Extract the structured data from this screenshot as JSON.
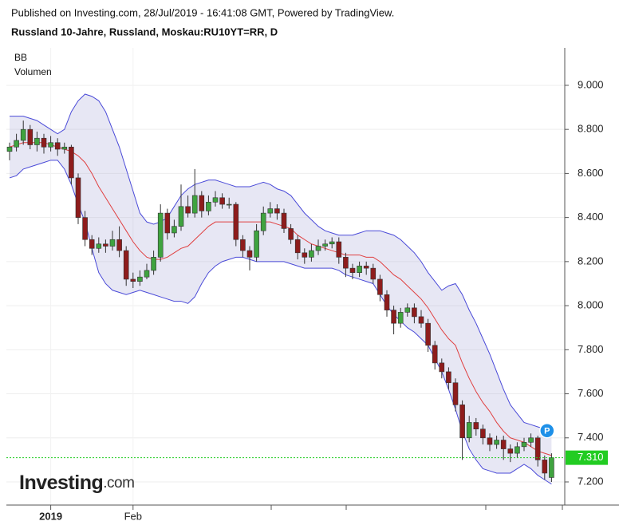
{
  "chart_data": {
    "type": "candlestick",
    "source": "Published on Investing.com, 28/Jul/2019 - 16:41:08 GMT, Powered by TradingView.",
    "title": "Russland 10-Jahre, Russland, Moskau:RU10YT=RR, D",
    "indicators": [
      "BB",
      "Volumen"
    ],
    "marker": "P",
    "up_color": "#3fa33f",
    "down_color": "#8e1c1c",
    "band_color": "#4a4ad8",
    "middle_color": "#e04040",
    "grid": true,
    "ylim": [
      7.095,
      9.17
    ],
    "yticks": [
      {
        "value": 7.2,
        "label": "7.200"
      },
      {
        "value": 7.4,
        "label": "7.400"
      },
      {
        "value": 7.6,
        "label": "7.600"
      },
      {
        "value": 7.8,
        "label": "7.800"
      },
      {
        "value": 8,
        "label": "8.000"
      },
      {
        "value": 8.2,
        "label": "8.200"
      },
      {
        "value": 8.4,
        "label": "8.400"
      },
      {
        "value": 8.6,
        "label": "8.600"
      },
      {
        "value": 8.8,
        "label": "8.800"
      },
      {
        "value": 9,
        "label": "9.000"
      }
    ],
    "last_price": {
      "value": 7.31,
      "label": "7.310"
    },
    "categories": [
      null,
      null,
      null,
      null,
      null,
      null,
      "2019",
      null,
      null,
      null,
      null,
      null,
      null,
      null,
      null,
      null,
      null,
      null,
      "Feb",
      null,
      null,
      null,
      null,
      null,
      null,
      null,
      null,
      null,
      null,
      null,
      null,
      null,
      null,
      null,
      null,
      null,
      null,
      null,
      null,
      null,
      null,
      null,
      null,
      null,
      null,
      null,
      null,
      null,
      null,
      null,
      null,
      null,
      null,
      null,
      null,
      null,
      null,
      null,
      null,
      null,
      null,
      null,
      null,
      null,
      null,
      null,
      null,
      null,
      null,
      null,
      null,
      null,
      null,
      null,
      null,
      null,
      null,
      null,
      null,
      null
    ],
    "candles": [
      [
        8.7,
        8.74,
        8.66,
        8.72
      ],
      [
        8.72,
        8.78,
        8.7,
        8.75
      ],
      [
        8.75,
        8.84,
        8.73,
        8.8
      ],
      [
        8.8,
        8.82,
        8.71,
        8.73
      ],
      [
        8.73,
        8.79,
        8.7,
        8.76
      ],
      [
        8.76,
        8.78,
        8.69,
        8.72
      ],
      [
        8.72,
        8.77,
        8.7,
        8.74
      ],
      [
        8.74,
        8.76,
        8.68,
        8.71
      ],
      [
        8.71,
        8.74,
        8.69,
        8.72
      ],
      [
        8.72,
        8.73,
        8.55,
        8.58
      ],
      [
        8.58,
        8.6,
        8.37,
        8.4
      ],
      [
        8.4,
        8.43,
        8.27,
        8.3
      ],
      [
        8.3,
        8.32,
        8.23,
        8.26
      ],
      [
        8.26,
        8.31,
        8.24,
        8.28
      ],
      [
        8.28,
        8.3,
        8.24,
        8.27
      ],
      [
        8.27,
        8.34,
        8.25,
        8.3
      ],
      [
        8.3,
        8.36,
        8.22,
        8.25
      ],
      [
        8.25,
        8.27,
        8.09,
        8.12
      ],
      [
        8.12,
        8.15,
        8.08,
        8.11
      ],
      [
        8.11,
        8.16,
        8.09,
        8.13
      ],
      [
        8.13,
        8.19,
        8.12,
        8.16
      ],
      [
        8.16,
        8.25,
        8.14,
        8.22
      ],
      [
        8.22,
        8.46,
        8.2,
        8.42
      ],
      [
        8.42,
        8.44,
        8.3,
        8.33
      ],
      [
        8.33,
        8.39,
        8.31,
        8.36
      ],
      [
        8.36,
        8.55,
        8.34,
        8.45
      ],
      [
        8.45,
        8.5,
        8.4,
        8.42
      ],
      [
        8.42,
        8.62,
        8.4,
        8.5
      ],
      [
        8.5,
        8.52,
        8.4,
        8.43
      ],
      [
        8.43,
        8.5,
        8.41,
        8.47
      ],
      [
        8.47,
        8.52,
        8.45,
        8.49
      ],
      [
        8.49,
        8.51,
        8.44,
        8.46
      ],
      [
        8.46,
        8.49,
        8.44,
        8.46
      ],
      [
        8.46,
        8.47,
        8.27,
        8.3
      ],
      [
        8.3,
        8.32,
        8.22,
        8.25
      ],
      [
        8.25,
        8.27,
        8.16,
        8.22
      ],
      [
        8.22,
        8.37,
        8.2,
        8.34
      ],
      [
        8.34,
        8.45,
        8.32,
        8.42
      ],
      [
        8.42,
        8.47,
        8.4,
        8.44
      ],
      [
        8.44,
        8.46,
        8.39,
        8.42
      ],
      [
        8.42,
        8.44,
        8.33,
        8.35
      ],
      [
        8.35,
        8.37,
        8.28,
        8.3
      ],
      [
        8.3,
        8.32,
        8.21,
        8.24
      ],
      [
        8.24,
        8.26,
        8.19,
        8.22
      ],
      [
        8.22,
        8.28,
        8.2,
        8.25
      ],
      [
        8.25,
        8.3,
        8.23,
        8.27
      ],
      [
        8.27,
        8.3,
        8.25,
        8.28
      ],
      [
        8.28,
        8.31,
        8.26,
        8.29
      ],
      [
        8.29,
        8.31,
        8.19,
        8.22
      ],
      [
        8.22,
        8.24,
        8.13,
        8.17
      ],
      [
        8.17,
        8.19,
        8.12,
        8.15
      ],
      [
        8.15,
        8.2,
        8.13,
        8.18
      ],
      [
        8.18,
        8.2,
        8.14,
        8.17
      ],
      [
        8.17,
        8.19,
        8.1,
        8.12
      ],
      [
        8.12,
        8.14,
        8.02,
        8.05
      ],
      [
        8.05,
        8.07,
        7.95,
        7.98
      ],
      [
        7.98,
        8.0,
        7.87,
        7.92
      ],
      [
        7.92,
        7.99,
        7.9,
        7.97
      ],
      [
        7.97,
        8.01,
        7.95,
        7.99
      ],
      [
        7.99,
        8.01,
        7.92,
        7.95
      ],
      [
        7.95,
        7.98,
        7.9,
        7.92
      ],
      [
        7.92,
        7.94,
        7.79,
        7.82
      ],
      [
        7.82,
        7.84,
        7.71,
        7.74
      ],
      [
        7.74,
        7.76,
        7.67,
        7.7
      ],
      [
        7.7,
        7.72,
        7.62,
        7.65
      ],
      [
        7.65,
        7.67,
        7.52,
        7.55
      ],
      [
        7.55,
        7.57,
        7.3,
        7.4
      ],
      [
        7.4,
        7.5,
        7.38,
        7.47
      ],
      [
        7.47,
        7.49,
        7.41,
        7.44
      ],
      [
        7.44,
        7.46,
        7.37,
        7.4
      ],
      [
        7.4,
        7.42,
        7.34,
        7.37
      ],
      [
        7.37,
        7.41,
        7.35,
        7.39
      ],
      [
        7.39,
        7.41,
        7.3,
        7.35
      ],
      [
        7.35,
        7.37,
        7.29,
        7.33
      ],
      [
        7.33,
        7.38,
        7.31,
        7.36
      ],
      [
        7.36,
        7.4,
        7.34,
        7.38
      ],
      [
        7.38,
        7.42,
        7.36,
        7.4
      ],
      [
        7.4,
        7.41,
        7.27,
        7.3
      ],
      [
        7.3,
        7.32,
        7.21,
        7.24
      ],
      [
        7.22,
        7.33,
        7.2,
        7.31
      ]
    ],
    "bb_upper": [
      8.86,
      8.86,
      8.86,
      8.85,
      8.84,
      8.82,
      8.8,
      8.78,
      8.8,
      8.88,
      8.93,
      8.96,
      8.95,
      8.93,
      8.88,
      8.8,
      8.72,
      8.62,
      8.52,
      8.42,
      8.38,
      8.37,
      8.38,
      8.4,
      8.45,
      8.5,
      8.53,
      8.55,
      8.56,
      8.57,
      8.57,
      8.56,
      8.55,
      8.54,
      8.54,
      8.54,
      8.55,
      8.56,
      8.55,
      8.53,
      8.52,
      8.5,
      8.46,
      8.42,
      8.39,
      8.36,
      8.34,
      8.33,
      8.32,
      8.32,
      8.32,
      8.33,
      8.34,
      8.34,
      8.34,
      8.33,
      8.32,
      8.3,
      8.27,
      8.24,
      8.2,
      8.15,
      8.11,
      8.07,
      8.09,
      8.1,
      8.05,
      7.98,
      7.92,
      7.85,
      7.78,
      7.7,
      7.62,
      7.55,
      7.51,
      7.47,
      7.46,
      7.45,
      7.44,
      7.44
    ],
    "bb_middle": [
      8.72,
      8.73,
      8.74,
      8.74,
      8.74,
      8.74,
      8.73,
      8.72,
      8.71,
      8.7,
      8.68,
      8.65,
      8.6,
      8.54,
      8.49,
      8.44,
      8.39,
      8.34,
      8.29,
      8.25,
      8.22,
      8.21,
      8.21,
      8.22,
      8.24,
      8.26,
      8.27,
      8.3,
      8.33,
      8.36,
      8.38,
      8.38,
      8.38,
      8.38,
      8.38,
      8.38,
      8.38,
      8.38,
      8.38,
      8.37,
      8.36,
      8.35,
      8.32,
      8.3,
      8.28,
      8.27,
      8.26,
      8.25,
      8.24,
      8.23,
      8.23,
      8.23,
      8.22,
      8.22,
      8.2,
      8.17,
      8.14,
      8.12,
      8.09,
      8.06,
      8.03,
      7.99,
      7.94,
      7.89,
      7.85,
      7.82,
      7.74,
      7.67,
      7.61,
      7.56,
      7.52,
      7.47,
      7.43,
      7.4,
      7.39,
      7.38,
      7.36,
      7.34,
      7.33,
      7.32
    ],
    "bb_lower": [
      8.58,
      8.59,
      8.62,
      8.63,
      8.64,
      8.65,
      8.66,
      8.66,
      8.62,
      8.55,
      8.46,
      8.38,
      8.26,
      8.15,
      8.1,
      8.07,
      8.06,
      8.05,
      8.06,
      8.07,
      8.06,
      8.05,
      8.04,
      8.03,
      8.02,
      8.02,
      8.01,
      8.04,
      8.1,
      8.15,
      8.18,
      8.2,
      8.21,
      8.22,
      8.22,
      8.21,
      8.2,
      8.2,
      8.2,
      8.2,
      8.2,
      8.19,
      8.18,
      8.17,
      8.17,
      8.17,
      8.17,
      8.17,
      8.16,
      8.14,
      8.13,
      8.12,
      8.11,
      8.1,
      8.05,
      8.0,
      7.96,
      7.93,
      7.9,
      7.88,
      7.85,
      7.82,
      7.76,
      7.7,
      7.62,
      7.53,
      7.43,
      7.35,
      7.3,
      7.26,
      7.25,
      7.24,
      7.24,
      7.24,
      7.26,
      7.28,
      7.26,
      7.23,
      7.21,
      7.19
    ]
  },
  "logo": {
    "name": "Investing",
    "suffix": ".com"
  }
}
